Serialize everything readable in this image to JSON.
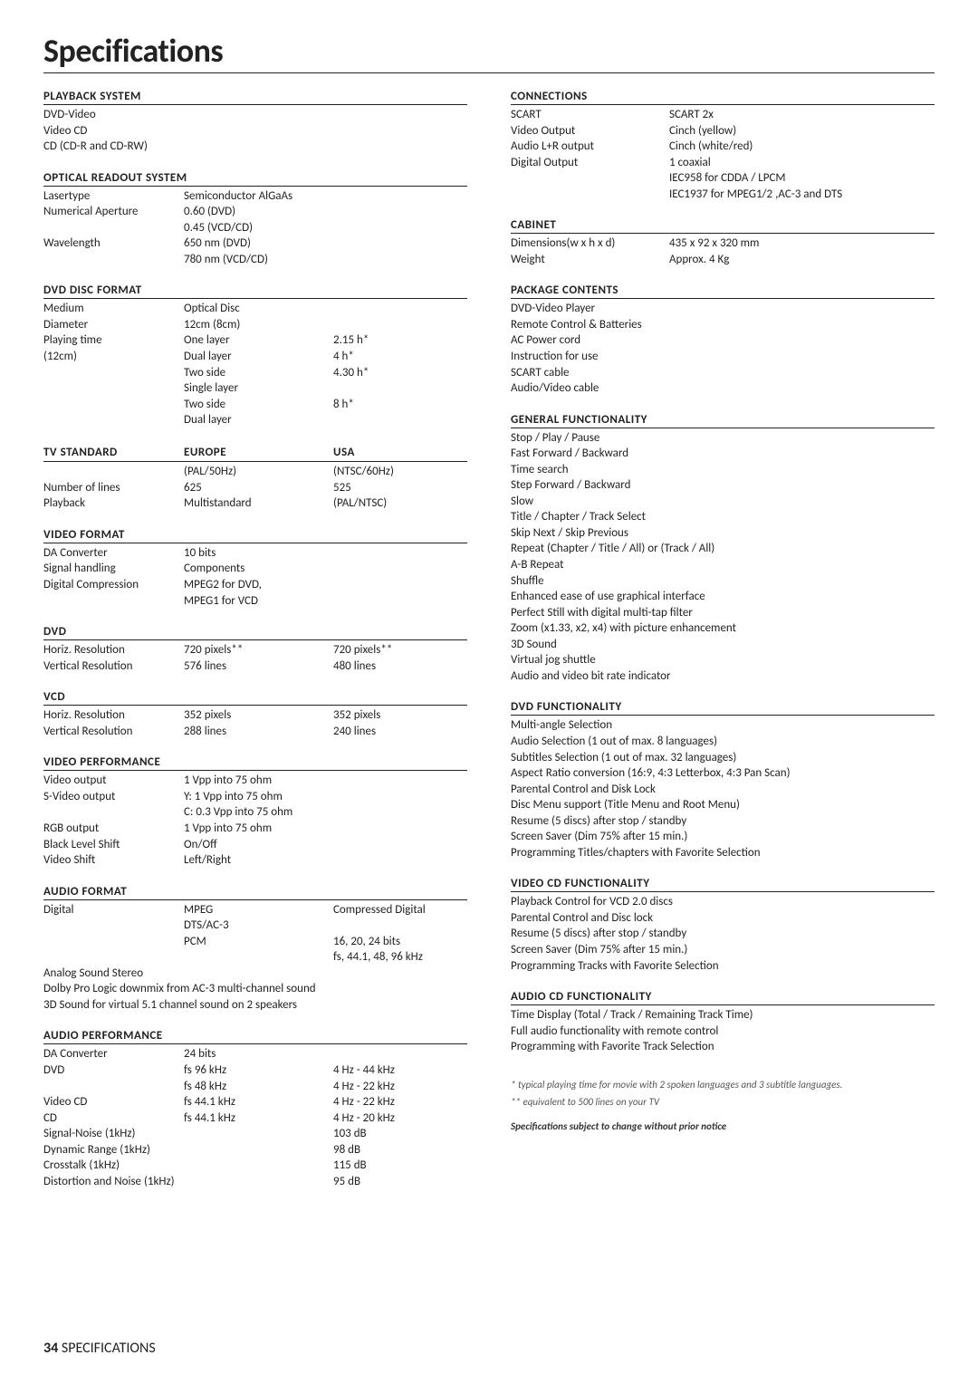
{
  "title": "Specifications",
  "footer": {
    "page": "34",
    "label": "SPECIFICATIONS"
  },
  "left": {
    "playback_system": {
      "h": "PLAYBACK SYSTEM",
      "items": [
        "DVD-Video",
        "Video CD",
        "CD (CD-R and CD-RW)"
      ]
    },
    "optical": {
      "h": "OPTICAL READOUT SYSTEM",
      "rows": [
        [
          "Lasertype",
          "Semiconductor AlGaAs",
          ""
        ],
        [
          "Numerical Aperture",
          "0.60 (DVD)",
          ""
        ],
        [
          "",
          "0.45 (VCD/CD)",
          ""
        ],
        [
          "Wavelength",
          "650 nm (DVD)",
          ""
        ],
        [
          "",
          "780 nm (VCD/CD)",
          ""
        ]
      ]
    },
    "dvd_disc": {
      "h": "DVD DISC FORMAT",
      "rows": [
        [
          "Medium",
          "Optical Disc",
          ""
        ],
        [
          "Diameter",
          "12cm (8cm)",
          ""
        ],
        [
          "Playing time",
          "One layer",
          "2.15 h*"
        ],
        [
          "(12cm)",
          "Dual layer",
          "4 h*"
        ],
        [
          "",
          "Two side",
          "4.30 h*"
        ],
        [
          "",
          "Single layer",
          ""
        ],
        [
          "",
          "Two side",
          "8 h*"
        ],
        [
          "",
          "Dual layer",
          ""
        ]
      ]
    },
    "tv_standard": {
      "h": "TV STANDARD",
      "head": [
        "",
        "EUROPE",
        "USA"
      ],
      "rows": [
        [
          "",
          "(PAL/50Hz)",
          "(NTSC/60Hz)"
        ],
        [
          "Number of lines",
          "625",
          "525"
        ],
        [
          "Playback",
          "Multistandard",
          "(PAL/NTSC)"
        ]
      ]
    },
    "video_format": {
      "h": "VIDEO FORMAT",
      "rows": [
        [
          "DA Converter",
          "10 bits",
          ""
        ],
        [
          "Signal handling",
          "Components",
          ""
        ],
        [
          "Digital Compression",
          "MPEG2 for DVD,",
          ""
        ],
        [
          "",
          "MPEG1 for VCD",
          ""
        ]
      ]
    },
    "dvd": {
      "h": "DVD",
      "rows": [
        [
          "Horiz. Resolution",
          "720 pixels**",
          "720 pixels**"
        ],
        [
          "Vertical Resolution",
          "576 lines",
          "480 lines"
        ]
      ]
    },
    "vcd": {
      "h": "VCD",
      "rows": [
        [
          "Horiz. Resolution",
          "352 pixels",
          "352 pixels"
        ],
        [
          "Vertical Resolution",
          "288 lines",
          "240 lines"
        ]
      ]
    },
    "video_perf": {
      "h": "VIDEO PERFORMANCE",
      "rows": [
        [
          "Video output",
          "1 Vpp into 75 ohm",
          ""
        ],
        [
          "S-Video output",
          "Y: 1 Vpp into 75 ohm",
          ""
        ],
        [
          "",
          "C: 0.3 Vpp into 75 ohm",
          ""
        ],
        [
          "RGB output",
          "1 Vpp into 75 ohm",
          ""
        ],
        [
          "Black Level Shift",
          "On/Off",
          ""
        ],
        [
          "Video Shift",
          "Left/Right",
          ""
        ]
      ]
    },
    "audio_format": {
      "h": "AUDIO FORMAT",
      "rows": [
        [
          "Digital",
          "MPEG",
          "Compressed Digital"
        ],
        [
          "",
          "DTS/AC-3",
          ""
        ],
        [
          "",
          "PCM",
          "16, 20, 24 bits"
        ],
        [
          "",
          "",
          "fs, 44.1, 48, 96 kHz"
        ]
      ],
      "notes": [
        "Analog Sound Stereo",
        "Dolby Pro Logic downmix from AC-3 multi-channel sound",
        "3D Sound for virtual 5.1 channel sound on 2 speakers"
      ]
    },
    "audio_perf": {
      "h": "AUDIO PERFORMANCE",
      "rows": [
        [
          "DA Converter",
          "24 bits",
          ""
        ],
        [
          "DVD",
          "fs 96 kHz",
          "4 Hz - 44 kHz"
        ],
        [
          "",
          "fs 48 kHz",
          "4 Hz - 22 kHz"
        ],
        [
          "Video CD",
          "fs 44.1 kHz",
          "4 Hz - 22 kHz"
        ],
        [
          "CD",
          "fs 44.1 kHz",
          "4 Hz - 20 kHz"
        ],
        [
          "Signal-Noise (1kHz)",
          "",
          "103 dB"
        ],
        [
          "Dynamic Range (1kHz)",
          "",
          "98 dB"
        ],
        [
          "Crosstalk (1kHz)",
          "",
          "115 dB"
        ],
        [
          "Distortion and Noise (1kHz)",
          "",
          "95 dB"
        ]
      ]
    }
  },
  "right": {
    "connections": {
      "h": "CONNECTIONS",
      "rows": [
        [
          "SCART",
          "SCART 2x"
        ],
        [
          "Video Output",
          "Cinch (yellow)"
        ],
        [
          "Audio L+R output",
          "Cinch (white/red)"
        ],
        [
          "Digital Output",
          "1 coaxial"
        ],
        [
          "",
          "IEC958 for CDDA / LPCM"
        ],
        [
          "",
          "IEC1937 for MPEG1/2 ,AC-3 and DTS"
        ]
      ]
    },
    "cabinet": {
      "h": "CABINET",
      "rows": [
        [
          "Dimensions(w x h x d)",
          "435 x 92 x 320 mm"
        ],
        [
          "Weight",
          "Approx. 4 Kg"
        ]
      ]
    },
    "package": {
      "h": "PACKAGE CONTENTS",
      "items": [
        "DVD-Video Player",
        "Remote Control & Batteries",
        "AC Power cord",
        "Instruction for use",
        "SCART cable",
        "Audio/Video cable"
      ]
    },
    "general": {
      "h": "GENERAL FUNCTIONALITY",
      "items": [
        "Stop / Play / Pause",
        "Fast Forward / Backward",
        "Time search",
        "Step Forward / Backward",
        "Slow",
        "Title / Chapter / Track Select",
        "Skip Next / Skip Previous",
        "Repeat (Chapter / Title / All) or (Track / All)",
        "A-B Repeat",
        "Shuffle",
        "Enhanced ease of use graphical interface",
        "Perfect Still with digital multi-tap filter",
        "Zoom (x1.33, x2, x4) with picture enhancement",
        "3D Sound",
        "Virtual jog shuttle",
        "Audio and video bit rate indicator"
      ]
    },
    "dvd_func": {
      "h": "DVD FUNCTIONALITY",
      "items": [
        "Multi-angle Selection",
        "Audio Selection (1 out of max. 8 languages)",
        "Subtitles Selection (1 out of max. 32 languages)",
        "Aspect Ratio conversion (16:9, 4:3 Letterbox, 4:3 Pan Scan)",
        "Parental Control and Disk Lock",
        "Disc Menu support (Title Menu and  Root Menu)",
        "Resume (5 discs) after stop / standby",
        "Screen Saver (Dim 75% after 15 min.)",
        "Programming Titles/chapters with Favorite Selection"
      ]
    },
    "vcd_func": {
      "h": "VIDEO CD FUNCTIONALITY",
      "items": [
        "Playback Control for VCD 2.0 discs",
        "Parental Control and Disc lock",
        "Resume (5 discs) after stop / standby",
        "Screen Saver (Dim 75% after 15 min.)",
        "Programming Tracks with Favorite Selection"
      ]
    },
    "acd_func": {
      "h": "AUDIO CD FUNCTIONALITY",
      "items": [
        "Time Display (Total / Track / Remaining Track Time)",
        "Full audio functionality with remote control",
        "Programming with Favorite Track Selection"
      ]
    },
    "footnotes": {
      "a": "*   typical playing time for movie with 2 spoken languages and 3 subtitle languages.",
      "b": "** equivalent to 500 lines on your TV",
      "c": "Specifications subject to change without prior notice"
    }
  }
}
